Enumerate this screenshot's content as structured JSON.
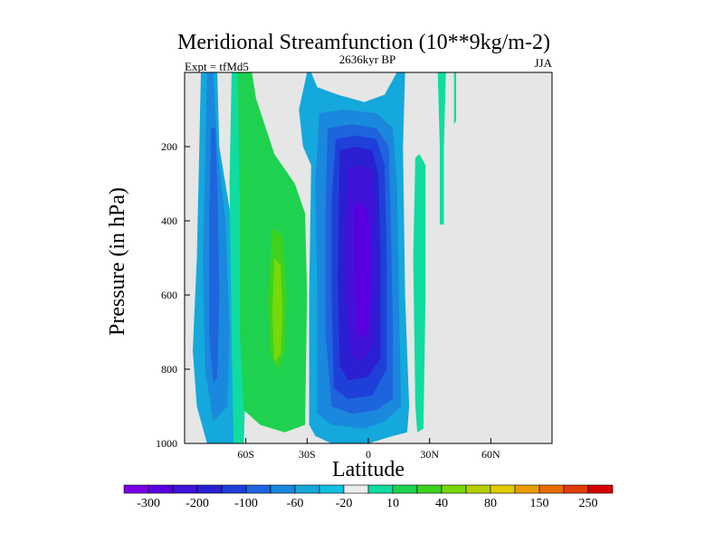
{
  "chart_data": {
    "type": "heatmap",
    "title": "Meridional Streamfunction (10**9kg/m-2)",
    "left_string": "Expt = tfMd5",
    "center_string": "2636kyr BP",
    "right_string": "JJA",
    "xlabel": "Latitude",
    "ylabel": "Pressure (in hPa)",
    "xlim": [
      -90,
      90
    ],
    "ylim": [
      1000,
      0
    ],
    "x_ticks": [
      {
        "value": -60,
        "label": "60S"
      },
      {
        "value": -30,
        "label": "30S"
      },
      {
        "value": 0,
        "label": "0"
      },
      {
        "value": 30,
        "label": "30N"
      },
      {
        "value": 60,
        "label": "60N"
      }
    ],
    "y_ticks": [
      {
        "value": 200,
        "label": "200"
      },
      {
        "value": 400,
        "label": "400"
      },
      {
        "value": 600,
        "label": "600"
      },
      {
        "value": 800,
        "label": "800"
      },
      {
        "value": 1000,
        "label": "1000"
      }
    ],
    "background_color": "#e6e6e6",
    "colorbar": {
      "levels": [
        -300,
        -250,
        -200,
        -150,
        -100,
        -80,
        -60,
        -40,
        -20,
        -10,
        10,
        20,
        40,
        60,
        80,
        100,
        150,
        200,
        250,
        300
      ],
      "labeled": [
        {
          "index": 0,
          "label": "-300"
        },
        {
          "index": 2,
          "label": "-200"
        },
        {
          "index": 4,
          "label": "-100"
        },
        {
          "index": 6,
          "label": "-60"
        },
        {
          "index": 8,
          "label": "-20"
        },
        {
          "index": 10,
          "label": "10"
        },
        {
          "index": 12,
          "label": "40"
        },
        {
          "index": 14,
          "label": "80"
        },
        {
          "index": 16,
          "label": "150"
        },
        {
          "index": 18,
          "label": "250"
        }
      ],
      "colors": [
        "#7a00e6",
        "#5a00e0",
        "#4012d8",
        "#2a20d2",
        "#1e40d8",
        "#1e64dc",
        "#1a88dc",
        "#14a8dc",
        "#10c0e0",
        "#ececec",
        "#10dca0",
        "#1ed250",
        "#3ed21e",
        "#78d80a",
        "#b4d000",
        "#e0cc00",
        "#ec9c00",
        "#e86c00",
        "#e23c00",
        "#d80000"
      ]
    },
    "regions": [
      {
        "name": "sh-outer-light-blue",
        "value": -15,
        "color": "#14a8dc",
        "points": [
          [
            -82,
            0
          ],
          [
            -74,
            0
          ],
          [
            -73,
            200
          ],
          [
            -67,
            400
          ],
          [
            -63,
            700
          ],
          [
            -62,
            1000
          ],
          [
            -79,
            1000
          ],
          [
            -84,
            900
          ],
          [
            -86,
            750
          ],
          [
            -84,
            500
          ],
          [
            -83,
            250
          ]
        ]
      },
      {
        "name": "sh-inner-blue",
        "value": -30,
        "color": "#1a88dc",
        "points": [
          [
            -79,
            0
          ],
          [
            -76,
            0
          ],
          [
            -74,
            200
          ],
          [
            -70,
            400
          ],
          [
            -68,
            700
          ],
          [
            -69,
            900
          ],
          [
            -76,
            940
          ],
          [
            -80,
            800
          ],
          [
            -81,
            500
          ],
          [
            -80,
            250
          ]
        ]
      },
      {
        "name": "sh-core-blue",
        "value": -50,
        "color": "#1e64dc",
        "points": [
          [
            -77,
            150
          ],
          [
            -75,
            150
          ],
          [
            -74,
            300
          ],
          [
            -73,
            600
          ],
          [
            -74,
            820
          ],
          [
            -76,
            840
          ],
          [
            -78,
            700
          ],
          [
            -78,
            400
          ]
        ]
      },
      {
        "name": "sh-teal-band",
        "value": 8,
        "color": "#10dca0",
        "points": [
          [
            -67,
            0
          ],
          [
            -62,
            0
          ],
          [
            -61,
            400
          ],
          [
            -60,
            800
          ],
          [
            -61,
            1000
          ],
          [
            -66,
            1000
          ],
          [
            -67,
            700
          ],
          [
            -68,
            300
          ]
        ]
      },
      {
        "name": "sh-green-cell",
        "value": 25,
        "color": "#1ed250",
        "points": [
          [
            -64,
            0
          ],
          [
            -57,
            0
          ],
          [
            -55,
            70
          ],
          [
            -46,
            220
          ],
          [
            -36,
            300
          ],
          [
            -31,
            380
          ],
          [
            -30,
            600
          ],
          [
            -31,
            950
          ],
          [
            -41,
            970
          ],
          [
            -53,
            950
          ],
          [
            -61,
            910
          ],
          [
            -63,
            700
          ],
          [
            -63,
            350
          ]
        ]
      },
      {
        "name": "sh-bright-green",
        "value": 45,
        "color": "#3ed21e",
        "points": [
          [
            -47,
            420
          ],
          [
            -42,
            440
          ],
          [
            -40,
            600
          ],
          [
            -41,
            750
          ],
          [
            -44,
            800
          ],
          [
            -48,
            760
          ],
          [
            -49,
            600
          ]
        ]
      },
      {
        "name": "sh-yellow-green",
        "value": 65,
        "color": "#78d80a",
        "points": [
          [
            -46,
            500
          ],
          [
            -43,
            520
          ],
          [
            -42,
            650
          ],
          [
            -43,
            760
          ],
          [
            -46,
            780
          ],
          [
            -47,
            650
          ]
        ]
      },
      {
        "name": "eq-light-blue",
        "value": -15,
        "color": "#14a8dc",
        "points": [
          [
            -30,
            0
          ],
          [
            -28,
            0
          ],
          [
            -25,
            40
          ],
          [
            -15,
            60
          ],
          [
            -2,
            80
          ],
          [
            8,
            60
          ],
          [
            14,
            0
          ],
          [
            18,
            0
          ],
          [
            17,
            200
          ],
          [
            18,
            600
          ],
          [
            20,
            900
          ],
          [
            19,
            970
          ],
          [
            12,
            980
          ],
          [
            0,
            1000
          ],
          [
            -18,
            1000
          ],
          [
            -26,
            980
          ],
          [
            -29,
            950
          ],
          [
            -29,
            600
          ],
          [
            -28,
            250
          ],
          [
            -32,
            200
          ],
          [
            -34,
            100
          ]
        ]
      },
      {
        "name": "eq-blue",
        "value": -45,
        "color": "#1a88dc",
        "points": [
          [
            -24,
            110
          ],
          [
            -12,
            100
          ],
          [
            4,
            110
          ],
          [
            12,
            150
          ],
          [
            14,
            300
          ],
          [
            15,
            600
          ],
          [
            16,
            900
          ],
          [
            8,
            940
          ],
          [
            -2,
            960
          ],
          [
            -18,
            950
          ],
          [
            -25,
            920
          ],
          [
            -25,
            600
          ],
          [
            -26,
            300
          ]
        ]
      },
      {
        "name": "eq-mid-blue",
        "value": -70,
        "color": "#1e64dc",
        "points": [
          [
            -20,
            150
          ],
          [
            -8,
            140
          ],
          [
            4,
            150
          ],
          [
            10,
            200
          ],
          [
            11,
            400
          ],
          [
            12,
            700
          ],
          [
            12,
            880
          ],
          [
            4,
            910
          ],
          [
            -8,
            920
          ],
          [
            -18,
            900
          ],
          [
            -21,
            700
          ],
          [
            -21,
            400
          ]
        ]
      },
      {
        "name": "eq-deep-blue",
        "value": -120,
        "color": "#1e40d8",
        "points": [
          [
            -16,
            180
          ],
          [
            -6,
            170
          ],
          [
            4,
            180
          ],
          [
            8,
            250
          ],
          [
            9,
            500
          ],
          [
            9,
            800
          ],
          [
            2,
            870
          ],
          [
            -10,
            880
          ],
          [
            -17,
            850
          ],
          [
            -18,
            600
          ],
          [
            -18,
            350
          ]
        ]
      },
      {
        "name": "eq-indigo",
        "value": -170,
        "color": "#2a20d2",
        "points": [
          [
            -14,
            210
          ],
          [
            -6,
            200
          ],
          [
            2,
            210
          ],
          [
            5,
            280
          ],
          [
            6,
            500
          ],
          [
            6,
            770
          ],
          [
            0,
            820
          ],
          [
            -10,
            830
          ],
          [
            -14,
            790
          ],
          [
            -15,
            550
          ]
        ]
      },
      {
        "name": "eq-violet",
        "value": -230,
        "color": "#4012d8",
        "points": [
          [
            -10,
            260
          ],
          [
            -4,
            250
          ],
          [
            1,
            260
          ],
          [
            3,
            360
          ],
          [
            3,
            600
          ],
          [
            2,
            740
          ],
          [
            -3,
            780
          ],
          [
            -9,
            760
          ],
          [
            -11,
            600
          ],
          [
            -11,
            400
          ]
        ]
      },
      {
        "name": "eq-purple-core",
        "value": -260,
        "color": "#5a00e0",
        "points": [
          [
            -7,
            360
          ],
          [
            -3,
            350
          ],
          [
            0,
            380
          ],
          [
            1,
            500
          ],
          [
            0,
            700
          ],
          [
            -3,
            720
          ],
          [
            -6,
            690
          ],
          [
            -7,
            550
          ]
        ]
      },
      {
        "name": "nh-teal-thin",
        "value": 12,
        "color": "#10dca0",
        "points": [
          [
            23,
            230
          ],
          [
            25,
            220
          ],
          [
            28,
            250
          ],
          [
            28,
            600
          ],
          [
            27,
            960
          ],
          [
            24,
            970
          ],
          [
            23,
            900
          ],
          [
            22,
            500
          ]
        ]
      },
      {
        "name": "nh-teal-high",
        "value": 12,
        "color": "#10dca0",
        "points": [
          [
            34,
            0
          ],
          [
            38,
            0
          ],
          [
            37,
            200
          ],
          [
            37,
            410
          ],
          [
            35,
            410
          ],
          [
            35,
            200
          ]
        ]
      },
      {
        "name": "nh-teal-sliver",
        "value": 12,
        "color": "#10dca0",
        "points": [
          [
            42,
            0
          ],
          [
            43,
            0
          ],
          [
            43,
            130
          ],
          [
            42,
            140
          ]
        ]
      }
    ]
  }
}
